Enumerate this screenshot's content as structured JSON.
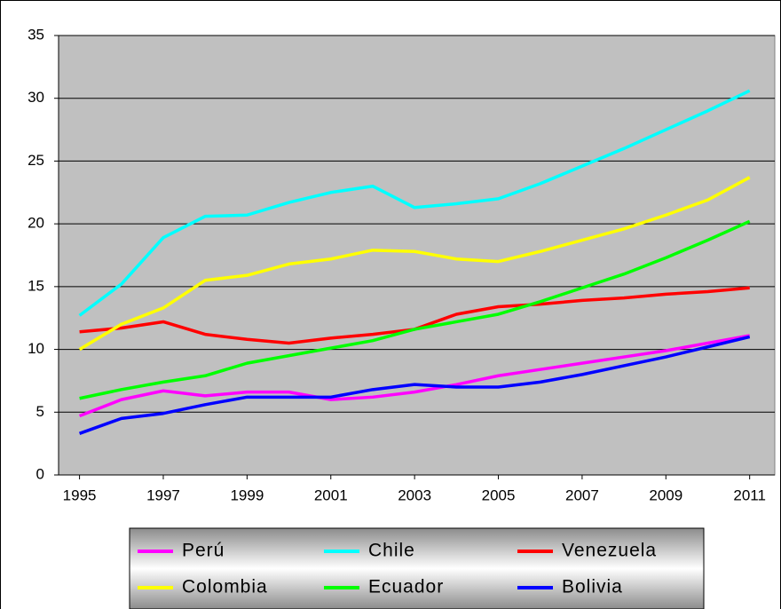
{
  "chart_data": {
    "type": "line",
    "x": [
      1995,
      1996,
      1997,
      1998,
      1999,
      2000,
      2001,
      2002,
      2003,
      2004,
      2005,
      2006,
      2007,
      2008,
      2009,
      2010,
      2011
    ],
    "series": [
      {
        "name": "Perú",
        "color": "#ff00ff",
        "values": [
          4.7,
          6.0,
          6.7,
          6.3,
          6.6,
          6.6,
          6.0,
          6.2,
          6.6,
          7.2,
          7.9,
          8.4,
          8.9,
          9.4,
          9.9,
          10.5,
          11.1
        ]
      },
      {
        "name": "Chile",
        "color": "#00ffff",
        "values": [
          12.7,
          15.2,
          18.9,
          20.6,
          20.7,
          21.7,
          22.5,
          23.0,
          21.3,
          21.6,
          22.0,
          23.2,
          24.6,
          26.0,
          27.5,
          29.0,
          30.6
        ]
      },
      {
        "name": "Venezuela",
        "color": "#ff0000",
        "values": [
          11.4,
          11.7,
          12.2,
          11.2,
          10.8,
          10.5,
          10.9,
          11.2,
          11.6,
          12.8,
          13.4,
          13.6,
          13.9,
          14.1,
          14.4,
          14.6,
          14.9
        ]
      },
      {
        "name": "Colombia",
        "color": "#ffff00",
        "values": [
          10.0,
          12.0,
          13.3,
          15.5,
          15.9,
          16.8,
          17.2,
          17.9,
          17.8,
          17.2,
          17.0,
          17.8,
          18.7,
          19.6,
          20.7,
          21.9,
          23.7
        ]
      },
      {
        "name": "Ecuador",
        "color": "#00ff00",
        "values": [
          6.1,
          6.8,
          7.4,
          7.9,
          8.9,
          9.5,
          10.1,
          10.7,
          11.6,
          12.2,
          12.8,
          13.8,
          14.9,
          16.0,
          17.3,
          18.7,
          20.2
        ]
      },
      {
        "name": "Bolivia",
        "color": "#0000ff",
        "values": [
          3.3,
          4.5,
          4.9,
          5.6,
          6.2,
          6.2,
          6.2,
          6.8,
          7.2,
          7.0,
          7.0,
          7.4,
          8.0,
          8.7,
          9.4,
          10.2,
          11.0
        ]
      }
    ],
    "xlim": [
      1994.5,
      2011.6
    ],
    "xticks": [
      1995,
      1997,
      1999,
      2001,
      2003,
      2005,
      2007,
      2009,
      2011
    ],
    "ylim": [
      0,
      35
    ],
    "yticks": [
      0,
      5,
      10,
      15,
      20,
      25,
      30,
      35
    ],
    "grid": true,
    "legend": "bottom",
    "background": "#c0c0c0"
  }
}
